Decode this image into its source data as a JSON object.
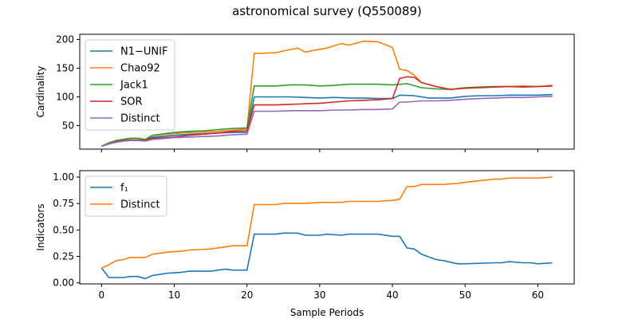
{
  "figure_title": "astronomical survey (Q550089)",
  "x_axis": {
    "label": "Sample Periods",
    "ticks": [
      0,
      10,
      20,
      30,
      40,
      50,
      60
    ],
    "range": [
      -3,
      65
    ]
  },
  "chart_data": [
    {
      "type": "line",
      "ylabel": "Cardinality",
      "ylim": [
        9,
        209
      ],
      "yticks": [
        50,
        100,
        150,
        200
      ],
      "show_xtick_labels": false,
      "legend": "top-left",
      "series": [
        {
          "name": "N1−UNIF",
          "color": "#1f77b4",
          "x": [
            0,
            1,
            2,
            3,
            4,
            5,
            6,
            7,
            10,
            12,
            14,
            16,
            18,
            20,
            21,
            24,
            26,
            28,
            30,
            32,
            34,
            36,
            38,
            40,
            41,
            43,
            45,
            48,
            50,
            52,
            54,
            56,
            58,
            60,
            62
          ],
          "y": [
            14,
            18,
            22,
            24,
            25,
            25,
            25,
            30,
            33,
            35,
            36,
            37,
            38,
            38,
            100,
            100,
            100,
            99,
            98,
            99,
            98,
            98,
            97,
            97,
            103,
            102,
            98,
            98,
            101,
            102,
            102,
            103,
            103,
            103,
            104
          ]
        },
        {
          "name": "Chao92",
          "color": "#ff7f0e",
          "x": [
            0,
            1,
            2,
            3,
            4,
            5,
            6,
            7,
            10,
            12,
            14,
            16,
            18,
            20,
            21,
            22,
            24,
            25,
            27,
            28,
            30,
            31,
            33,
            34,
            36,
            38,
            40,
            41,
            42,
            43,
            44,
            46,
            48,
            50,
            52,
            54,
            56,
            58,
            60,
            62
          ],
          "y": [
            14,
            20,
            24,
            26,
            28,
            28,
            26,
            33,
            36,
            38,
            39,
            40,
            42,
            44,
            176,
            176,
            177,
            180,
            185,
            178,
            183,
            185,
            193,
            190,
            197,
            196,
            186,
            148,
            146,
            138,
            125,
            118,
            113,
            116,
            117,
            118,
            118,
            119,
            118,
            120
          ]
        },
        {
          "name": "Jack1",
          "color": "#2ca02c",
          "x": [
            0,
            1,
            2,
            3,
            4,
            5,
            6,
            7,
            10,
            12,
            14,
            16,
            18,
            20,
            21,
            24,
            26,
            28,
            30,
            32,
            34,
            36,
            38,
            40,
            42,
            44,
            46,
            48,
            50,
            52,
            54,
            56,
            58,
            60,
            62
          ],
          "y": [
            14,
            20,
            24,
            26,
            28,
            28,
            26,
            33,
            38,
            40,
            41,
            43,
            45,
            46,
            119,
            119,
            121,
            121,
            119,
            120,
            122,
            122,
            122,
            121,
            123,
            116,
            114,
            113,
            116,
            117,
            118,
            118,
            118,
            118,
            119
          ]
        },
        {
          "name": "SOR",
          "color": "#d62728",
          "x": [
            0,
            1,
            2,
            3,
            4,
            5,
            6,
            7,
            10,
            12,
            14,
            16,
            18,
            20,
            21,
            24,
            26,
            28,
            30,
            32,
            34,
            36,
            38,
            40,
            41,
            42,
            43,
            44,
            46,
            48,
            50,
            52,
            54,
            56,
            58,
            60,
            62
          ],
          "y": [
            14,
            18,
            22,
            24,
            25,
            25,
            24,
            28,
            30,
            33,
            35,
            37,
            40,
            41,
            86,
            86,
            87,
            88,
            89,
            91,
            93,
            94,
            95,
            97,
            132,
            135,
            134,
            125,
            118,
            113,
            115,
            116,
            117,
            118,
            117,
            118,
            119
          ]
        },
        {
          "name": "Distinct",
          "color": "#9467bd",
          "x": [
            0,
            1,
            2,
            3,
            4,
            5,
            6,
            7,
            10,
            12,
            14,
            16,
            18,
            20,
            21,
            24,
            26,
            28,
            30,
            32,
            34,
            36,
            38,
            40,
            41,
            42,
            44,
            46,
            48,
            50,
            52,
            54,
            56,
            58,
            60,
            62
          ],
          "y": [
            14,
            18,
            21,
            23,
            24,
            24,
            23,
            26,
            29,
            30,
            31,
            32,
            34,
            35,
            75,
            75,
            76,
            76,
            76,
            77,
            77,
            78,
            78,
            79,
            91,
            91,
            93,
            93,
            94,
            96,
            97,
            98,
            99,
            99,
            100,
            101
          ]
        }
      ]
    },
    {
      "type": "line",
      "ylabel": "Indicators",
      "ylim": [
        -0.01,
        1.06
      ],
      "yticks": [
        0.0,
        0.25,
        0.5,
        0.75,
        1.0
      ],
      "ytick_labels": [
        "0.00",
        "0.25",
        "0.50",
        "0.75",
        "1.00"
      ],
      "show_xtick_labels": true,
      "legend": "top-left",
      "series": [
        {
          "name": "f₁",
          "color": "#1f77b4",
          "x": [
            0,
            1,
            2,
            3,
            4,
            5,
            6,
            7,
            9,
            11,
            12,
            15,
            17,
            18,
            20,
            21,
            24,
            25,
            27,
            28,
            30,
            31,
            33,
            34,
            36,
            38,
            40,
            41,
            42,
            43,
            44,
            46,
            47,
            49,
            50,
            54,
            55,
            56,
            58,
            59,
            60,
            62
          ],
          "y": [
            0.14,
            0.05,
            0.05,
            0.05,
            0.06,
            0.06,
            0.04,
            0.07,
            0.09,
            0.1,
            0.11,
            0.11,
            0.13,
            0.12,
            0.12,
            0.46,
            0.46,
            0.47,
            0.47,
            0.45,
            0.45,
            0.46,
            0.45,
            0.46,
            0.46,
            0.46,
            0.44,
            0.44,
            0.33,
            0.32,
            0.27,
            0.22,
            0.21,
            0.18,
            0.18,
            0.19,
            0.19,
            0.2,
            0.19,
            0.19,
            0.18,
            0.19
          ]
        },
        {
          "name": "Distinct",
          "color": "#ff7f0e",
          "x": [
            0,
            1,
            2,
            3,
            4,
            5,
            6,
            7,
            9,
            11,
            12,
            15,
            17,
            18,
            20,
            21,
            24,
            25,
            27,
            28,
            30,
            31,
            33,
            34,
            36,
            38,
            40,
            41,
            42,
            43,
            44,
            46,
            47,
            49,
            50,
            54,
            55,
            56,
            58,
            59,
            60,
            62
          ],
          "y": [
            0.14,
            0.17,
            0.21,
            0.22,
            0.24,
            0.24,
            0.24,
            0.27,
            0.29,
            0.3,
            0.31,
            0.32,
            0.34,
            0.35,
            0.35,
            0.74,
            0.74,
            0.75,
            0.75,
            0.75,
            0.76,
            0.76,
            0.76,
            0.77,
            0.77,
            0.77,
            0.78,
            0.79,
            0.91,
            0.91,
            0.93,
            0.93,
            0.93,
            0.94,
            0.95,
            0.98,
            0.98,
            0.99,
            0.99,
            0.99,
            0.99,
            1.0
          ]
        }
      ]
    }
  ]
}
